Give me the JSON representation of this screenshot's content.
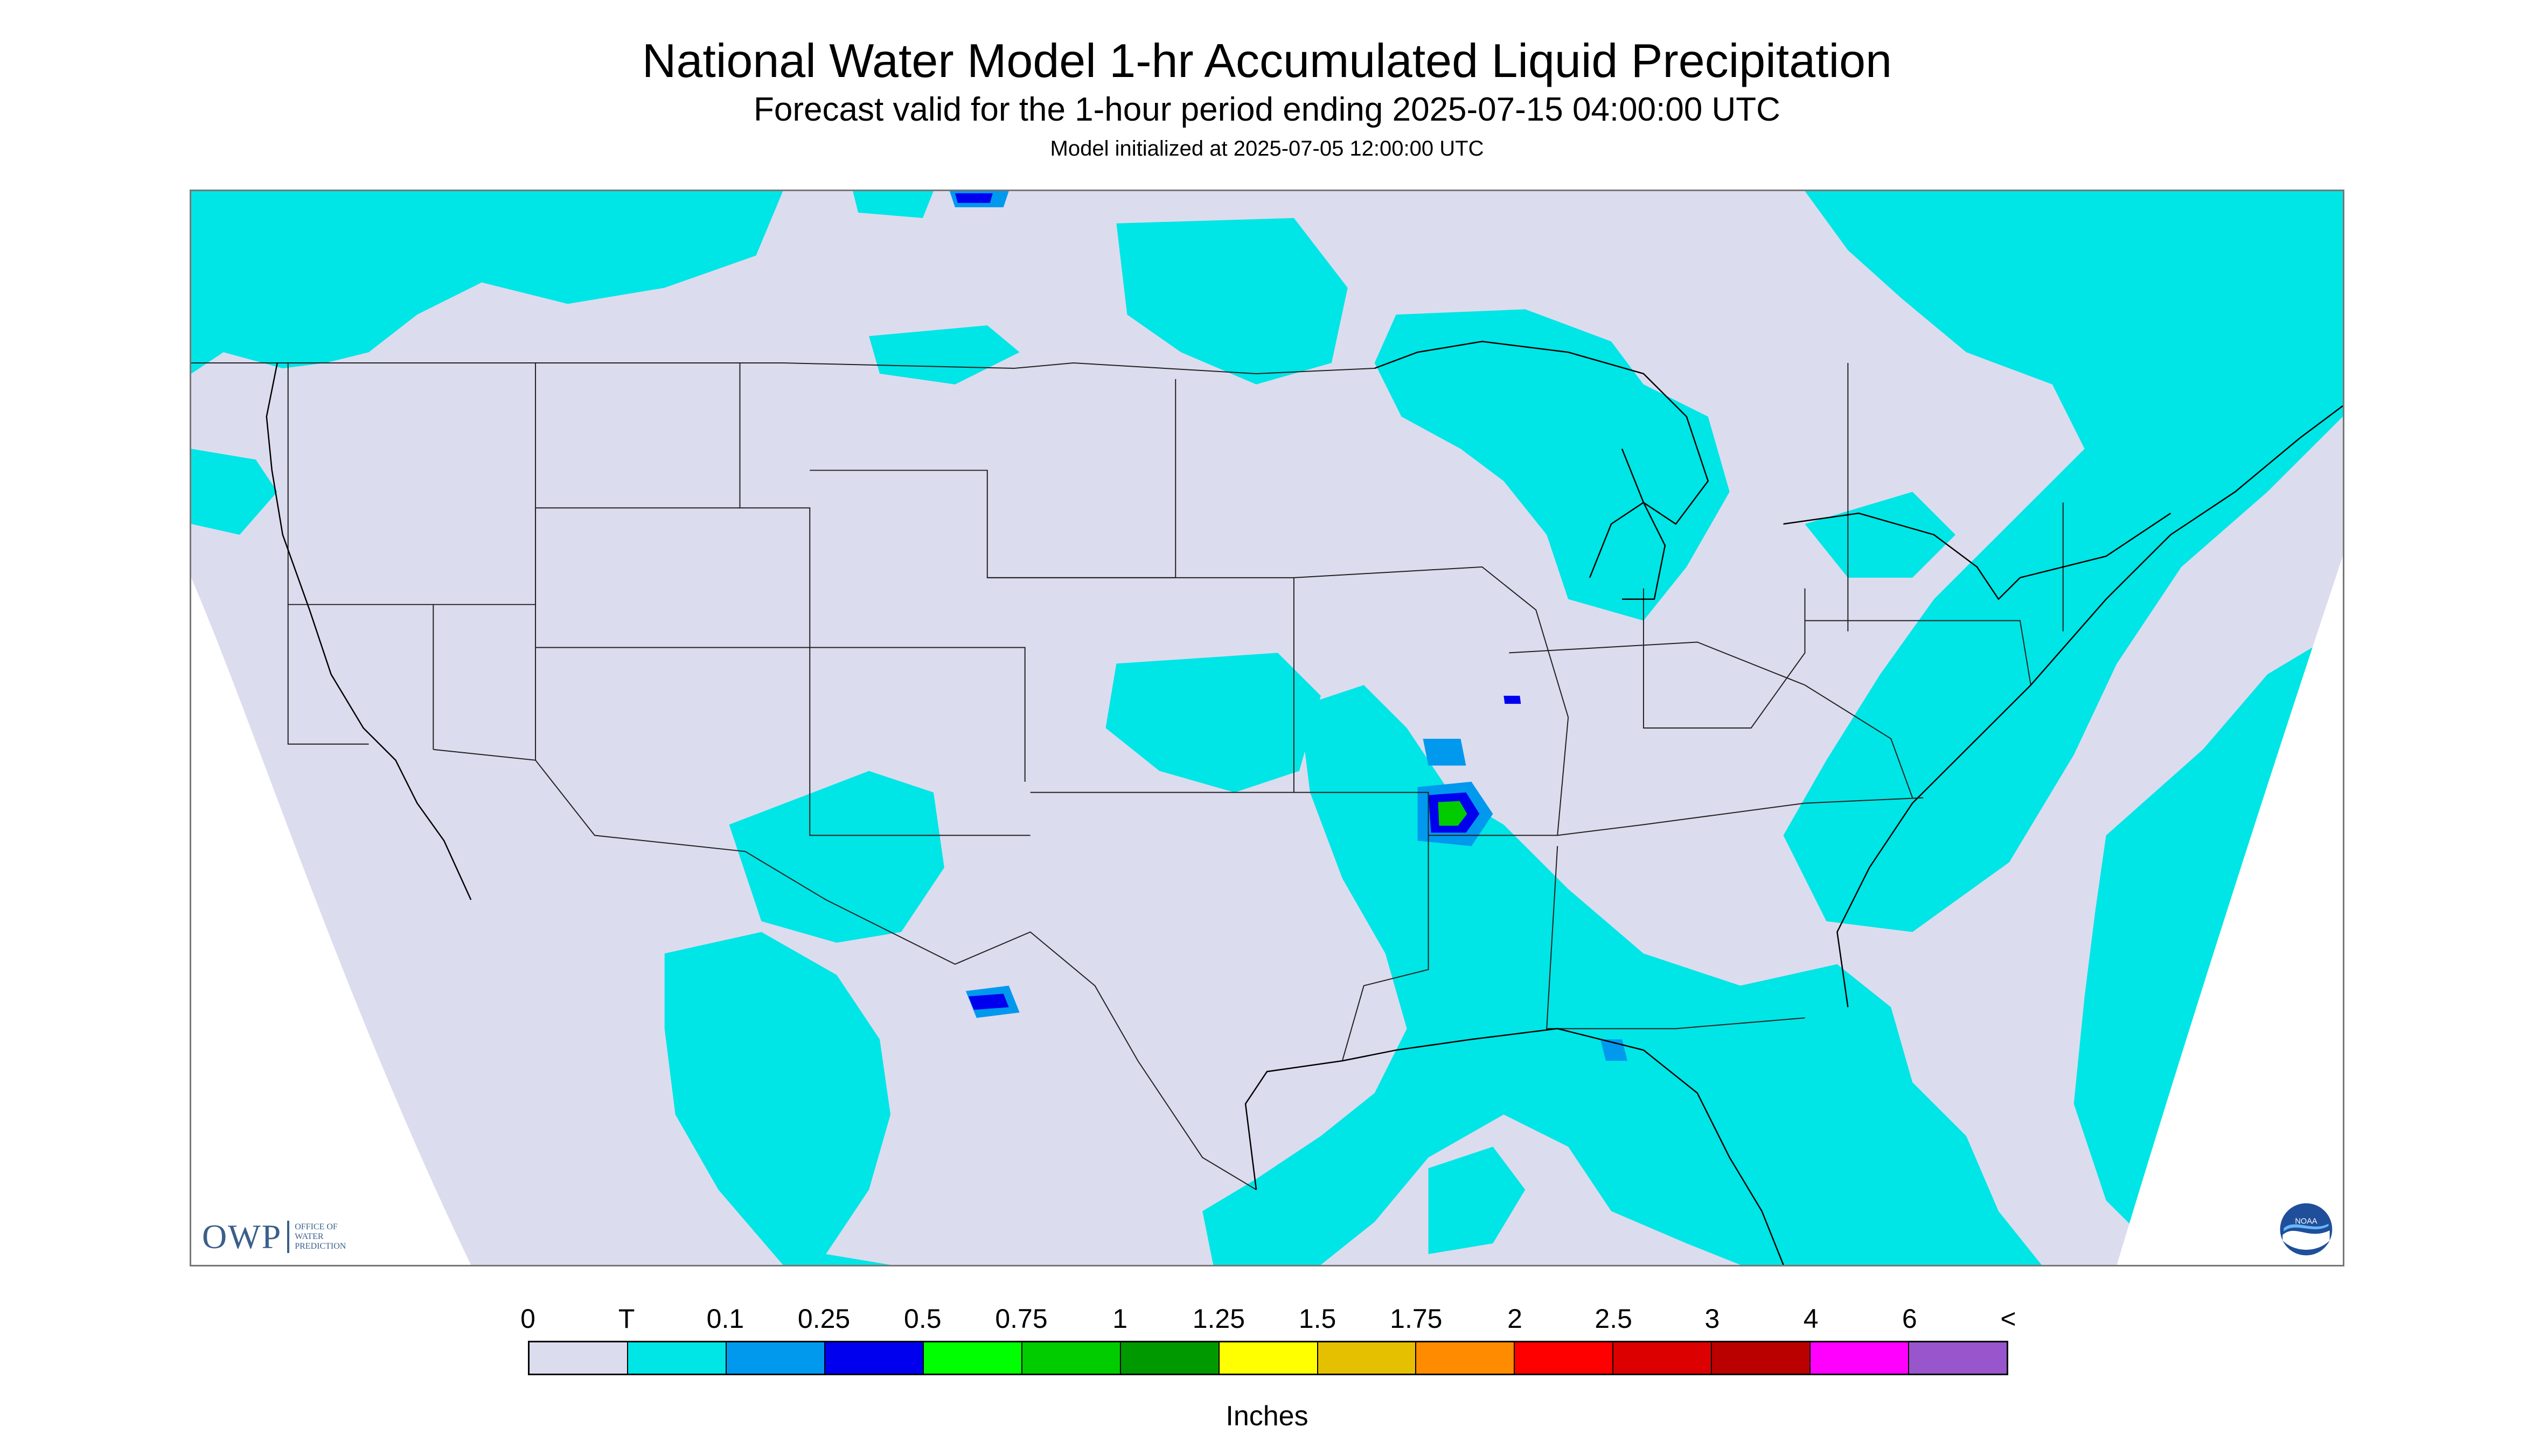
{
  "header": {
    "title": "National Water Model 1-hr Accumulated Liquid Precipitation",
    "subtitle": "Forecast valid for the 1-hour period ending 2025-07-15 04:00:00 UTC",
    "init_line": "Model initialized at 2025-07-05 12:00:00 UTC"
  },
  "map": {
    "background_color": "#dcdcef",
    "offgrid_color": "#ffffff",
    "precip_colors": {
      "trace": "#00e5e5",
      "light": "#0099ee",
      "moderate": "#0000ee",
      "heavy": "#00cc00"
    },
    "logos": {
      "owp": {
        "icon": "owp-logo-icon",
        "big_text": "OWP",
        "small_text": "Office of Water Prediction"
      },
      "noaa": {
        "icon": "noaa-logo-icon",
        "text": "NOAA"
      }
    }
  },
  "legend": {
    "labels": [
      "0",
      "T",
      "0.1",
      "0.25",
      "0.5",
      "0.75",
      "1",
      "1.25",
      "1.5",
      "1.75",
      "2",
      "2.5",
      "3",
      "4",
      "6",
      "<"
    ],
    "colors": [
      "#dcdcef",
      "#00e5e5",
      "#0099ee",
      "#0000ee",
      "#00ff00",
      "#00cc00",
      "#009900",
      "#ffff00",
      "#e5c000",
      "#ff8c00",
      "#ff0000",
      "#dd0000",
      "#bb0000",
      "#ff00ff",
      "#9955cc"
    ],
    "units": "Inches"
  }
}
